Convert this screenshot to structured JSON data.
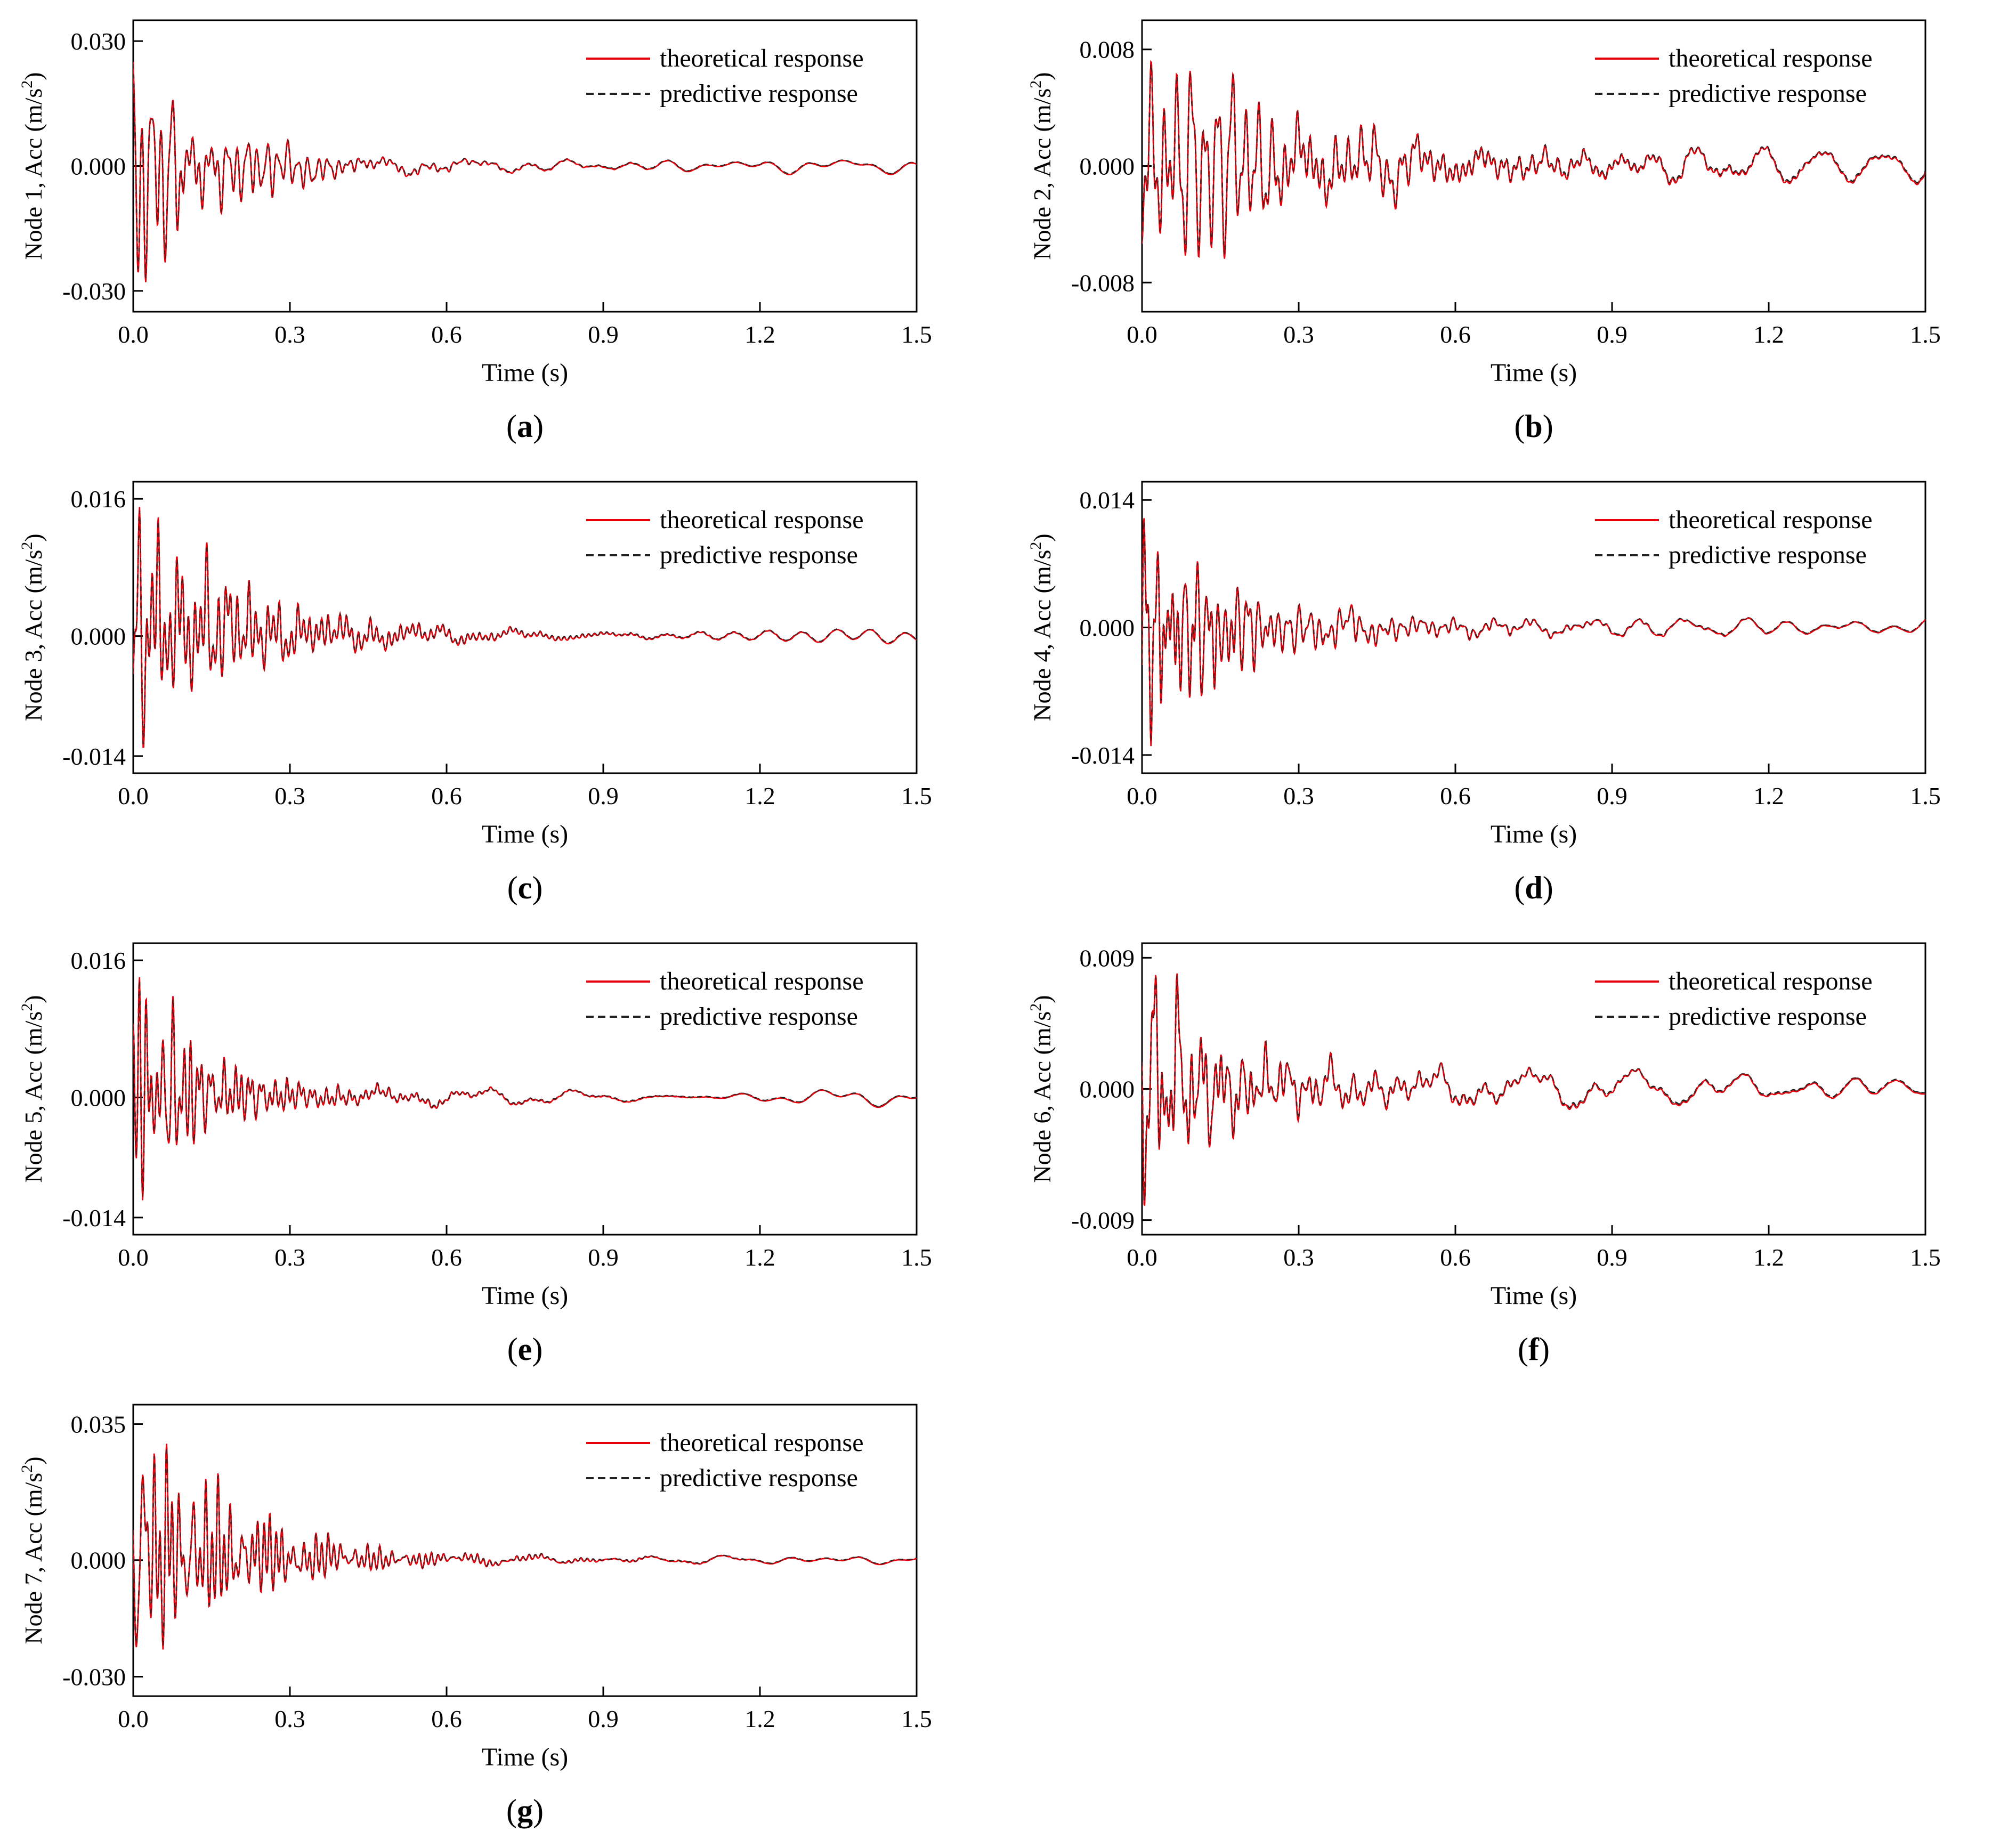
{
  "figure": {
    "panels": [
      {
        "id": "a",
        "ylabel": "Node 1, Acc (m/s",
        "ylabel_sup": "2",
        "ylabel_end": ")"
      },
      {
        "id": "b",
        "ylabel": "Node 2, Acc (m/s",
        "ylabel_sup": "2",
        "ylabel_end": ")"
      },
      {
        "id": "c",
        "ylabel": "Node 3, Acc (m/s",
        "ylabel_sup": "2",
        "ylabel_end": ")"
      },
      {
        "id": "d",
        "ylabel": "Node 4, Acc (m/s",
        "ylabel_sup": "2",
        "ylabel_end": ")"
      },
      {
        "id": "e",
        "ylabel": "Node 5, Acc (m/s",
        "ylabel_sup": "2",
        "ylabel_end": ")"
      },
      {
        "id": "f",
        "ylabel": "Node 6, Acc (m/s",
        "ylabel_sup": "2",
        "ylabel_end": ")"
      },
      {
        "id": "g",
        "ylabel": "Node 7, Acc (m/s",
        "ylabel_sup": "2",
        "ylabel_end": ")"
      }
    ]
  },
  "chart_data": [
    {
      "type": "line",
      "panel_label": "(a)",
      "title": "",
      "xlabel": "Time (s)",
      "ylabel": "Node 1, Acc (m/s2)",
      "xlim": [
        0,
        1.5
      ],
      "ylim": [
        -0.035,
        0.035
      ],
      "xticks": [
        0.0,
        0.3,
        0.6,
        0.9,
        1.2,
        1.5
      ],
      "xtick_labels": [
        "0.0",
        "0.3",
        "0.6",
        "0.9",
        "1.2",
        "1.5"
      ],
      "yticks": [
        -0.03,
        0.0,
        0.03
      ],
      "ytick_labels": [
        "-0.030",
        "0.000",
        "0.030"
      ],
      "legend": {
        "position": "top-right",
        "entries": [
          "theoretical response",
          "predictive response"
        ]
      },
      "series": [
        {
          "name": "theoretical response",
          "color": "#e8000b",
          "style": "solid"
        },
        {
          "name": "predictive response",
          "color": "#222222",
          "style": "dashed"
        }
      ],
      "signal": {
        "peak_max": 0.025,
        "peak_min": -0.028,
        "decay_s": 0.12,
        "tail_amp": 0.002,
        "seed": 11
      }
    },
    {
      "type": "line",
      "panel_label": "(b)",
      "title": "",
      "xlabel": "Time (s)",
      "ylabel": "Node 2, Acc (m/s2)",
      "xlim": [
        0,
        1.5
      ],
      "ylim": [
        -0.01,
        0.01
      ],
      "xticks": [
        0.0,
        0.3,
        0.6,
        0.9,
        1.2,
        1.5
      ],
      "xtick_labels": [
        "0.0",
        "0.3",
        "0.6",
        "0.9",
        "1.2",
        "1.5"
      ],
      "yticks": [
        -0.008,
        0.0,
        0.008
      ],
      "ytick_labels": [
        "-0.008",
        "0.000",
        "0.008"
      ],
      "legend": {
        "position": "top-right",
        "entries": [
          "theoretical response",
          "predictive response"
        ]
      },
      "series": [
        {
          "name": "theoretical response",
          "color": "#e8000b",
          "style": "solid"
        },
        {
          "name": "predictive response",
          "color": "#222222",
          "style": "dashed"
        }
      ],
      "signal": {
        "peak_max": 0.0072,
        "peak_min": -0.0066,
        "decay_s": 0.25,
        "tail_amp": 0.0015,
        "seed": 23
      }
    },
    {
      "type": "line",
      "panel_label": "(c)",
      "title": "",
      "xlabel": "Time (s)",
      "ylabel": "Node 3, Acc (m/s2)",
      "xlim": [
        0,
        1.5
      ],
      "ylim": [
        -0.016,
        0.018
      ],
      "xticks": [
        0.0,
        0.3,
        0.6,
        0.9,
        1.2,
        1.5
      ],
      "xtick_labels": [
        "0.0",
        "0.3",
        "0.6",
        "0.9",
        "1.2",
        "1.5"
      ],
      "yticks": [
        -0.014,
        0.0,
        0.016
      ],
      "ytick_labels": [
        "-0.014",
        "0.000",
        "0.016"
      ],
      "legend": {
        "position": "top-right",
        "entries": [
          "theoretical response",
          "predictive response"
        ]
      },
      "series": [
        {
          "name": "theoretical response",
          "color": "#e8000b",
          "style": "solid"
        },
        {
          "name": "predictive response",
          "color": "#222222",
          "style": "dashed"
        }
      ],
      "signal": {
        "peak_max": 0.015,
        "peak_min": -0.013,
        "decay_s": 0.14,
        "tail_amp": 0.001,
        "seed": 37
      }
    },
    {
      "type": "line",
      "panel_label": "(d)",
      "title": "",
      "xlabel": "Time (s)",
      "ylabel": "Node 4, Acc (m/s2)",
      "xlim": [
        0,
        1.5
      ],
      "ylim": [
        -0.016,
        0.016
      ],
      "xticks": [
        0.0,
        0.3,
        0.6,
        0.9,
        1.2,
        1.5
      ],
      "xtick_labels": [
        "0.0",
        "0.3",
        "0.6",
        "0.9",
        "1.2",
        "1.5"
      ],
      "yticks": [
        -0.014,
        0.0,
        0.014
      ],
      "ytick_labels": [
        "-0.014",
        "0.000",
        "0.014"
      ],
      "legend": {
        "position": "top-right",
        "entries": [
          "theoretical response",
          "predictive response"
        ]
      },
      "series": [
        {
          "name": "theoretical response",
          "color": "#e8000b",
          "style": "solid"
        },
        {
          "name": "predictive response",
          "color": "#222222",
          "style": "dashed"
        }
      ],
      "signal": {
        "peak_max": 0.012,
        "peak_min": -0.013,
        "decay_s": 0.16,
        "tail_amp": 0.0012,
        "seed": 41
      }
    },
    {
      "type": "line",
      "panel_label": "(e)",
      "title": "",
      "xlabel": "Time (s)",
      "ylabel": "Node 5, Acc (m/s2)",
      "xlim": [
        0,
        1.5
      ],
      "ylim": [
        -0.016,
        0.018
      ],
      "xticks": [
        0.0,
        0.3,
        0.6,
        0.9,
        1.2,
        1.5
      ],
      "xtick_labels": [
        "0.0",
        "0.3",
        "0.6",
        "0.9",
        "1.2",
        "1.5"
      ],
      "yticks": [
        -0.014,
        0.0,
        0.016
      ],
      "ytick_labels": [
        "-0.014",
        "0.000",
        "0.016"
      ],
      "legend": {
        "position": "top-right",
        "entries": [
          "theoretical response",
          "predictive response"
        ]
      },
      "series": [
        {
          "name": "theoretical response",
          "color": "#e8000b",
          "style": "solid"
        },
        {
          "name": "predictive response",
          "color": "#222222",
          "style": "dashed"
        }
      ],
      "signal": {
        "peak_max": 0.014,
        "peak_min": -0.012,
        "decay_s": 0.13,
        "tail_amp": 0.001,
        "seed": 53
      }
    },
    {
      "type": "line",
      "panel_label": "(f)",
      "title": "",
      "xlabel": "Time (s)",
      "ylabel": "Node 6, Acc (m/s2)",
      "xlim": [
        0,
        1.5
      ],
      "ylim": [
        -0.01,
        0.01
      ],
      "xticks": [
        0.0,
        0.3,
        0.6,
        0.9,
        1.2,
        1.5
      ],
      "xtick_labels": [
        "0.0",
        "0.3",
        "0.6",
        "0.9",
        "1.2",
        "1.5"
      ],
      "yticks": [
        -0.009,
        0.0,
        0.009
      ],
      "ytick_labels": [
        "-0.009",
        "0.000",
        "0.009"
      ],
      "legend": {
        "position": "top-right",
        "entries": [
          "theoretical response",
          "predictive response"
        ]
      },
      "series": [
        {
          "name": "theoretical response",
          "color": "#e8000b",
          "style": "solid"
        },
        {
          "name": "predictive response",
          "color": "#222222",
          "style": "dashed"
        }
      ],
      "signal": {
        "peak_max": 0.0078,
        "peak_min": -0.008,
        "decay_s": 0.22,
        "tail_amp": 0.0014,
        "seed": 67
      }
    },
    {
      "type": "line",
      "panel_label": "(g)",
      "title": "",
      "xlabel": "Time (s)",
      "ylabel": "Node 7, Acc (m/s2)",
      "xlim": [
        0,
        1.5
      ],
      "ylim": [
        -0.035,
        0.04
      ],
      "xticks": [
        0.0,
        0.3,
        0.6,
        0.9,
        1.2,
        1.5
      ],
      "xtick_labels": [
        "0.0",
        "0.3",
        "0.6",
        "0.9",
        "1.2",
        "1.5"
      ],
      "yticks": [
        -0.03,
        0.0,
        0.035
      ],
      "ytick_labels": [
        "-0.030",
        "0.000",
        "0.035"
      ],
      "legend": {
        "position": "top-right",
        "entries": [
          "theoretical response",
          "predictive response"
        ]
      },
      "series": [
        {
          "name": "theoretical response",
          "color": "#e8000b",
          "style": "solid"
        },
        {
          "name": "predictive response",
          "color": "#222222",
          "style": "dashed"
        }
      ],
      "signal": {
        "peak_max": 0.03,
        "peak_min": -0.023,
        "decay_s": 0.12,
        "tail_amp": 0.0018,
        "seed": 79
      }
    }
  ]
}
